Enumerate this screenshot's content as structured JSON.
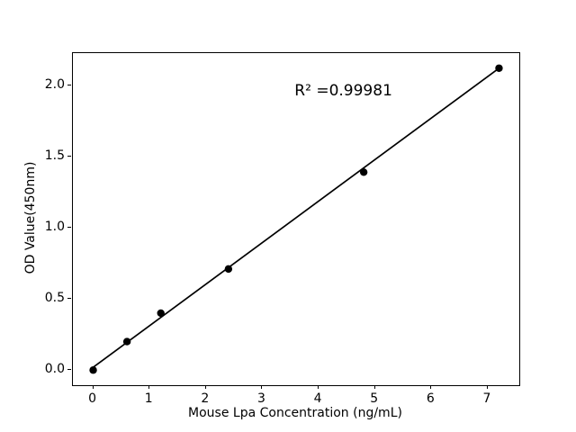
{
  "chart_data": {
    "type": "scatter",
    "title": "",
    "xlabel": "Mouse Lpa Concentration (ng/mL)",
    "ylabel": "OD Value(450nm)",
    "x": [
      0,
      0.6,
      1.2,
      2.4,
      4.8,
      7.2
    ],
    "y": [
      0.0,
      0.2,
      0.4,
      0.71,
      1.39,
      2.12
    ],
    "fit_line": {
      "x0": 0,
      "y0": 0.02,
      "x1": 7.2,
      "y1": 2.12
    },
    "annotation": {
      "text": "R² =0.99981",
      "x": 4.44,
      "y": 1.96
    },
    "xticks": [
      0,
      1,
      2,
      3,
      4,
      5,
      6,
      7
    ],
    "xtick_labels": [
      "0",
      "1",
      "2",
      "3",
      "4",
      "5",
      "6",
      "7"
    ],
    "yticks": [
      0.0,
      0.5,
      1.0,
      1.5,
      2.0
    ],
    "ytick_labels": [
      "0.0",
      "0.5",
      "1.0",
      "1.5",
      "2.0"
    ],
    "xlim": [
      -0.36,
      7.56
    ],
    "ylim": [
      -0.106,
      2.226
    ],
    "grid": false,
    "legend": null,
    "marker_color": "#000000",
    "line_color": "#000000",
    "axis_color": "#000000",
    "background_color": "#ffffff"
  }
}
